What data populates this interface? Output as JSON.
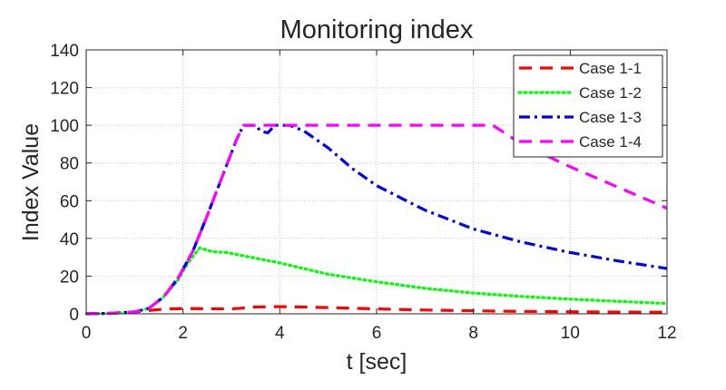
{
  "chart_data": {
    "type": "line",
    "title": "Monitoring index",
    "xlabel": "t [sec]",
    "ylabel": "Index Value",
    "xlim": [
      0,
      12
    ],
    "ylim": [
      0,
      140
    ],
    "xticks": [
      0,
      2,
      4,
      6,
      8,
      10,
      12
    ],
    "yticks": [
      0,
      20,
      40,
      60,
      80,
      100,
      120,
      140
    ],
    "grid": true,
    "legend_position": "top-right",
    "series": [
      {
        "name": "Case 1-1",
        "color": "#ff0000",
        "style": "dashed",
        "x": [
          0,
          0.5,
          1.0,
          1.3,
          1.6,
          2.0,
          2.5,
          3.0,
          3.5,
          4.0,
          5.0,
          6.0,
          7.0,
          8.0,
          9.0,
          10.0,
          11.0,
          12.0
        ],
        "y": [
          0,
          0.3,
          1.0,
          1.8,
          2.5,
          2.8,
          2.7,
          2.6,
          3.6,
          3.8,
          3.3,
          2.6,
          2.0,
          1.6,
          1.3,
          1.1,
          0.9,
          0.8
        ]
      },
      {
        "name": "Case 1-2",
        "color": "#00ff00",
        "style": "dotted",
        "x": [
          0,
          0.5,
          1.0,
          1.3,
          1.6,
          1.9,
          2.1,
          2.35,
          2.6,
          2.9,
          3.2,
          3.6,
          4.0,
          5.0,
          6.0,
          7.0,
          8.0,
          9.0,
          10.0,
          11.0,
          12.0
        ],
        "y": [
          0,
          0.3,
          1.0,
          3.0,
          9.0,
          18.0,
          27.0,
          35.0,
          33.0,
          32.5,
          31.0,
          29.0,
          27.0,
          21.0,
          17.0,
          13.5,
          11.0,
          9.2,
          7.8,
          6.6,
          5.5
        ]
      },
      {
        "name": "Case 1-3",
        "color": "#0000e6",
        "style": "dashdot",
        "x": [
          0,
          0.5,
          1.0,
          1.3,
          1.6,
          1.9,
          2.2,
          2.5,
          2.8,
          3.1,
          3.25,
          3.5,
          3.6,
          3.75,
          3.9,
          4.2,
          4.5,
          5.0,
          5.5,
          6.0,
          7.0,
          8.0,
          9.0,
          10.0,
          11.0,
          12.0
        ],
        "y": [
          0,
          0.3,
          1.0,
          3.0,
          9.0,
          19.0,
          33.0,
          52.0,
          72.0,
          92.0,
          100.0,
          100.0,
          97.0,
          96.0,
          100.0,
          100.0,
          97.0,
          88.0,
          77.0,
          68.0,
          55.0,
          45.0,
          38.0,
          32.5,
          28.0,
          24.0
        ]
      },
      {
        "name": "Case 1-4",
        "color": "#ff00ff",
        "style": "dashed",
        "x": [
          0,
          0.5,
          1.0,
          1.3,
          1.6,
          1.9,
          2.2,
          2.5,
          2.8,
          3.1,
          3.25,
          5.0,
          6.0,
          7.0,
          8.0,
          8.4,
          9.0,
          10.0,
          11.0,
          12.0
        ],
        "y": [
          0,
          0.3,
          1.0,
          3.0,
          9.0,
          19.0,
          33.0,
          52.0,
          72.0,
          92.0,
          100.0,
          100.0,
          100.0,
          100.0,
          100.0,
          100.0,
          90.0,
          78.0,
          67.0,
          56.0
        ]
      }
    ]
  }
}
